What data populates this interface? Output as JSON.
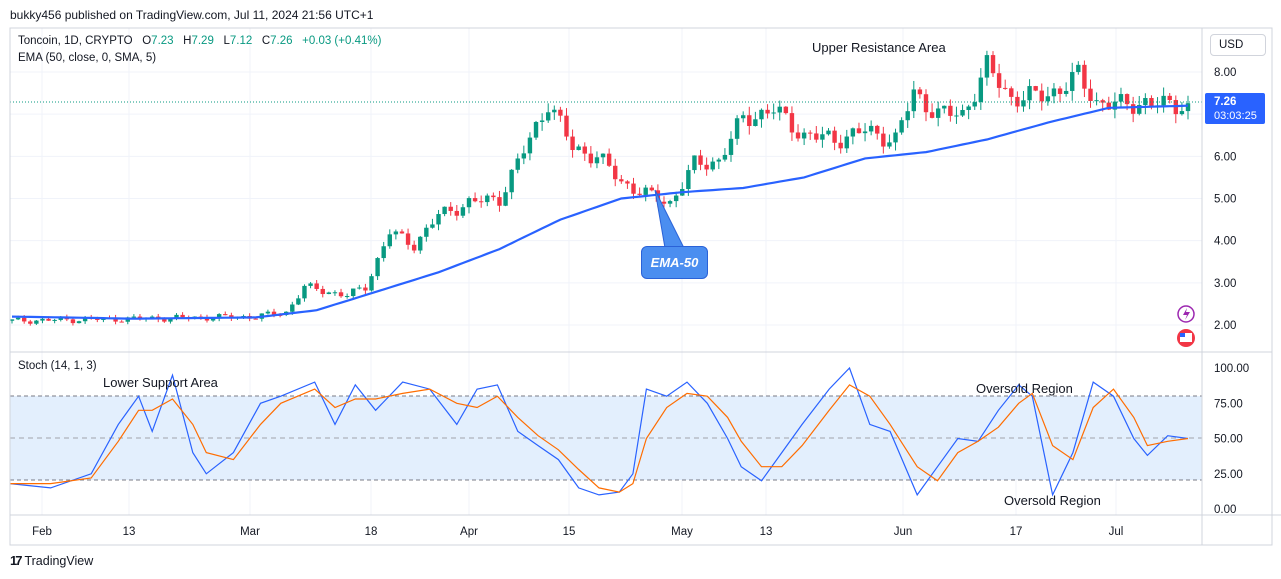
{
  "header": {
    "publisher": "bukky456 published on TradingView.com, Jul 11, 2024 21:56 UTC+1"
  },
  "symbol": {
    "name": "Toncoin, 1D, CRYPTO",
    "o_label": "O",
    "o": "7.23",
    "h_label": "H",
    "h": "7.29",
    "l_label": "L",
    "l": "7.12",
    "c_label": "C",
    "c": "7.26",
    "change": "+0.03 (+0.41%)",
    "ema_legend": "EMA (50, close, 0, SMA, 5)"
  },
  "stoch_legend": "Stoch (14, 1, 3)",
  "currency": "USD",
  "price_tag": {
    "price": "7.26",
    "countdown": "03:03:25"
  },
  "annotations": {
    "upper_resistance": "Upper Resistance Area",
    "lower_support": "Lower Support Area",
    "oversold_top": "Oversold Region",
    "oversold_bottom": "Oversold Region",
    "ema_callout": "EMA-50"
  },
  "footer": {
    "brand": "TradingView",
    "logo_mark": "17"
  },
  "colors": {
    "up": "#089981",
    "down": "#f23645",
    "ema": "#2962ff",
    "k": "#2962ff",
    "d": "#ff6d00",
    "band": "#e3effd"
  },
  "chart_data": [
    {
      "type": "candlestick",
      "ylim": [
        1.6,
        8.6
      ],
      "y_ticks": [
        "8.00",
        "7.00",
        "6.00",
        "5.00",
        "4.00",
        "3.00",
        "2.00"
      ],
      "x_ticks": [
        "Feb",
        "13",
        "Mar",
        "18",
        "Apr",
        "15",
        "May",
        "13",
        "Jun",
        "17",
        "Jul"
      ],
      "last_close": 7.26,
      "series": [
        {
          "name": "EMA (50, close, 0, SMA, 5)",
          "keypoints": [
            [
              0,
              2.2
            ],
            [
              20,
              2.15
            ],
            [
              40,
              2.18
            ],
            [
              50,
              2.35
            ],
            [
              60,
              2.8
            ],
            [
              70,
              3.25
            ],
            [
              80,
              3.8
            ],
            [
              90,
              4.5
            ],
            [
              100,
              5.0
            ],
            [
              110,
              5.15
            ],
            [
              120,
              5.25
            ],
            [
              130,
              5.5
            ],
            [
              140,
              5.95
            ],
            [
              150,
              6.1
            ],
            [
              160,
              6.4
            ],
            [
              170,
              6.8
            ],
            [
              180,
              7.15
            ],
            [
              193,
              7.2
            ]
          ]
        }
      ],
      "candle_anchors": [
        [
          0,
          2.1
        ],
        [
          20,
          2.15
        ],
        [
          40,
          2.2
        ],
        [
          45,
          2.3
        ],
        [
          48,
          2.9
        ],
        [
          55,
          2.7
        ],
        [
          58,
          2.9
        ],
        [
          62,
          4.2
        ],
        [
          66,
          3.9
        ],
        [
          70,
          4.6
        ],
        [
          75,
          4.9
        ],
        [
          80,
          5.0
        ],
        [
          85,
          6.4
        ],
        [
          88,
          7.3
        ],
        [
          92,
          6.2
        ],
        [
          96,
          6.0
        ],
        [
          100,
          5.4
        ],
        [
          104,
          5.1
        ],
        [
          108,
          4.9
        ],
        [
          112,
          5.8
        ],
        [
          116,
          5.9
        ],
        [
          120,
          6.9
        ],
        [
          125,
          7.1
        ],
        [
          130,
          6.5
        ],
        [
          135,
          6.4
        ],
        [
          140,
          6.6
        ],
        [
          145,
          6.4
        ],
        [
          148,
          7.5
        ],
        [
          152,
          7.0
        ],
        [
          156,
          7.0
        ],
        [
          160,
          8.1
        ],
        [
          164,
          7.4
        ],
        [
          168,
          7.4
        ],
        [
          172,
          7.6
        ],
        [
          175,
          7.9
        ],
        [
          178,
          7.3
        ],
        [
          182,
          7.2
        ],
        [
          186,
          7.3
        ],
        [
          189,
          7.2
        ],
        [
          193,
          7.26
        ]
      ]
    },
    {
      "type": "line",
      "title": "Stoch (14, 1, 3)",
      "ylim": [
        0,
        100
      ],
      "y_ticks": [
        "100.00",
        "75.00",
        "50.00",
        "25.00",
        "0.00"
      ],
      "band": [
        20,
        80
      ],
      "k_points": [
        [
          0,
          18
        ],
        [
          6,
          15
        ],
        [
          12,
          25
        ],
        [
          16,
          60
        ],
        [
          19,
          80
        ],
        [
          21,
          55
        ],
        [
          24,
          95
        ],
        [
          27,
          40
        ],
        [
          29,
          25
        ],
        [
          33,
          40
        ],
        [
          37,
          75
        ],
        [
          40,
          80
        ],
        [
          45,
          90
        ],
        [
          48,
          60
        ],
        [
          51,
          88
        ],
        [
          54,
          70
        ],
        [
          58,
          90
        ],
        [
          62,
          85
        ],
        [
          66,
          60
        ],
        [
          69,
          85
        ],
        [
          72,
          88
        ],
        [
          75,
          55
        ],
        [
          78,
          45
        ],
        [
          81,
          35
        ],
        [
          84,
          15
        ],
        [
          87,
          10
        ],
        [
          90,
          12
        ],
        [
          92,
          25
        ],
        [
          94,
          85
        ],
        [
          97,
          80
        ],
        [
          100,
          90
        ],
        [
          103,
          75
        ],
        [
          106,
          50
        ],
        [
          108,
          30
        ],
        [
          111,
          20
        ],
        [
          114,
          40
        ],
        [
          117,
          60
        ],
        [
          121,
          85
        ],
        [
          124,
          100
        ],
        [
          127,
          60
        ],
        [
          130,
          55
        ],
        [
          134,
          10
        ],
        [
          137,
          30
        ],
        [
          140,
          50
        ],
        [
          143,
          48
        ],
        [
          146,
          70
        ],
        [
          149,
          88
        ],
        [
          151,
          80
        ],
        [
          154,
          10
        ],
        [
          157,
          40
        ],
        [
          160,
          90
        ],
        [
          163,
          80
        ],
        [
          166,
          50
        ],
        [
          168,
          38
        ],
        [
          171,
          52
        ],
        [
          174,
          50
        ]
      ],
      "d_points": [
        [
          0,
          18
        ],
        [
          6,
          18
        ],
        [
          12,
          22
        ],
        [
          16,
          48
        ],
        [
          19,
          70
        ],
        [
          21,
          70
        ],
        [
          24,
          78
        ],
        [
          27,
          60
        ],
        [
          29,
          40
        ],
        [
          33,
          35
        ],
        [
          37,
          60
        ],
        [
          40,
          75
        ],
        [
          45,
          85
        ],
        [
          48,
          72
        ],
        [
          51,
          78
        ],
        [
          54,
          78
        ],
        [
          58,
          82
        ],
        [
          62,
          85
        ],
        [
          66,
          75
        ],
        [
          69,
          72
        ],
        [
          72,
          80
        ],
        [
          75,
          65
        ],
        [
          78,
          52
        ],
        [
          81,
          42
        ],
        [
          84,
          28
        ],
        [
          87,
          15
        ],
        [
          90,
          12
        ],
        [
          92,
          18
        ],
        [
          94,
          50
        ],
        [
          97,
          72
        ],
        [
          100,
          82
        ],
        [
          103,
          80
        ],
        [
          106,
          65
        ],
        [
          108,
          48
        ],
        [
          111,
          30
        ],
        [
          114,
          30
        ],
        [
          117,
          45
        ],
        [
          121,
          70
        ],
        [
          124,
          88
        ],
        [
          127,
          80
        ],
        [
          130,
          60
        ],
        [
          134,
          30
        ],
        [
          137,
          20
        ],
        [
          140,
          40
        ],
        [
          143,
          48
        ],
        [
          146,
          58
        ],
        [
          149,
          75
        ],
        [
          151,
          82
        ],
        [
          154,
          45
        ],
        [
          157,
          35
        ],
        [
          160,
          72
        ],
        [
          163,
          85
        ],
        [
          166,
          65
        ],
        [
          168,
          45
        ],
        [
          171,
          48
        ],
        [
          174,
          50
        ]
      ]
    }
  ]
}
